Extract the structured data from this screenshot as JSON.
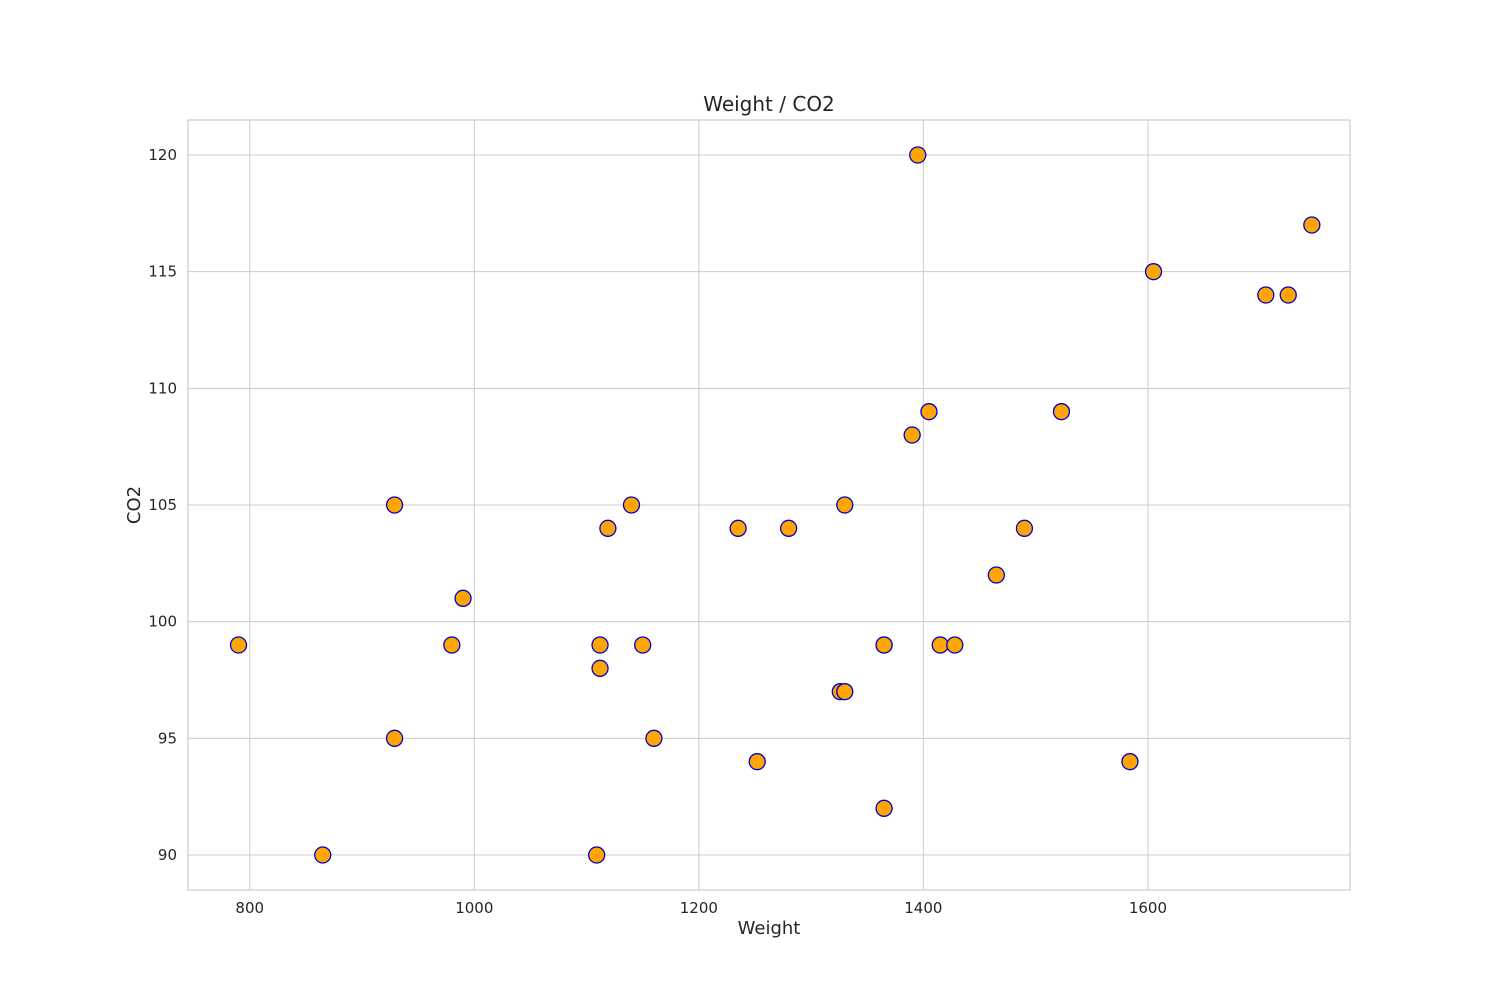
{
  "chart_data": {
    "type": "scatter",
    "title": "Weight / CO2",
    "xlabel": "Weight",
    "ylabel": "CO2",
    "xlim": [
      745,
      1780
    ],
    "ylim": [
      88.5,
      121.5
    ],
    "xticks": [
      800,
      1000,
      1200,
      1400,
      1600
    ],
    "yticks": [
      90,
      95,
      100,
      105,
      110,
      115,
      120
    ],
    "grid": true,
    "marker_fill": "#FFA500",
    "marker_edge": "#0000CC",
    "points": [
      {
        "x": 790,
        "y": 99
      },
      {
        "x": 865,
        "y": 90
      },
      {
        "x": 929,
        "y": 95
      },
      {
        "x": 929,
        "y": 105
      },
      {
        "x": 980,
        "y": 99
      },
      {
        "x": 990,
        "y": 101
      },
      {
        "x": 1109,
        "y": 90
      },
      {
        "x": 1112,
        "y": 98
      },
      {
        "x": 1112,
        "y": 99
      },
      {
        "x": 1119,
        "y": 104
      },
      {
        "x": 1140,
        "y": 105
      },
      {
        "x": 1150,
        "y": 99
      },
      {
        "x": 1160,
        "y": 95
      },
      {
        "x": 1235,
        "y": 104
      },
      {
        "x": 1252,
        "y": 94
      },
      {
        "x": 1280,
        "y": 104
      },
      {
        "x": 1326,
        "y": 97
      },
      {
        "x": 1330,
        "y": 97
      },
      {
        "x": 1330,
        "y": 105
      },
      {
        "x": 1365,
        "y": 99
      },
      {
        "x": 1365,
        "y": 99
      },
      {
        "x": 1365,
        "y": 92
      },
      {
        "x": 1390,
        "y": 108
      },
      {
        "x": 1395,
        "y": 120
      },
      {
        "x": 1405,
        "y": 109
      },
      {
        "x": 1415,
        "y": 99
      },
      {
        "x": 1428,
        "y": 99
      },
      {
        "x": 1465,
        "y": 102
      },
      {
        "x": 1490,
        "y": 104
      },
      {
        "x": 1523,
        "y": 109
      },
      {
        "x": 1584,
        "y": 94
      },
      {
        "x": 1605,
        "y": 115
      },
      {
        "x": 1705,
        "y": 114
      },
      {
        "x": 1725,
        "y": 114
      },
      {
        "x": 1746,
        "y": 117
      }
    ]
  }
}
